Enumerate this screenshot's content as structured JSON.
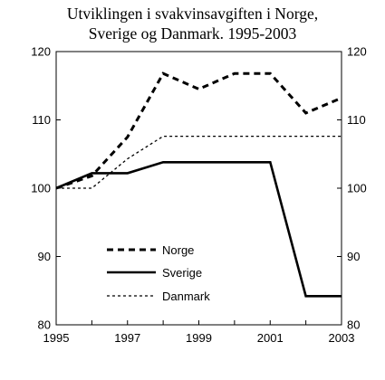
{
  "chart_data": {
    "type": "line",
    "title_line1": "Utviklingen i svakvinsavgiften i Norge,",
    "title_line2": "Sverige og Danmark. 1995-2003",
    "xlabel": "",
    "ylabel": "",
    "xlim": [
      1995,
      2003
    ],
    "ylim": [
      80,
      120
    ],
    "x_ticks": [
      1995,
      1997,
      1999,
      2001,
      2003
    ],
    "y_ticks": [
      80,
      90,
      100,
      110,
      120
    ],
    "grid": false,
    "legend_position": "lower-left",
    "x": [
      1995,
      1996,
      1997,
      1998,
      1999,
      2000,
      2001,
      2002,
      2003
    ],
    "series": [
      {
        "name": "Norge",
        "style": "dashed-thick",
        "color": "#000000",
        "values": [
          100,
          101.8,
          107.5,
          116.8,
          114.5,
          116.8,
          116.8,
          111,
          113.2
        ]
      },
      {
        "name": "Sverige",
        "style": "solid-thick",
        "color": "#000000",
        "values": [
          100,
          102.2,
          102.2,
          103.8,
          103.8,
          103.8,
          103.8,
          84.2,
          84.2
        ]
      },
      {
        "name": "Danmark",
        "style": "dotted-thin",
        "color": "#000000",
        "values": [
          100,
          100,
          104.3,
          107.6,
          107.6,
          107.6,
          107.6,
          107.6,
          107.6
        ]
      }
    ]
  }
}
